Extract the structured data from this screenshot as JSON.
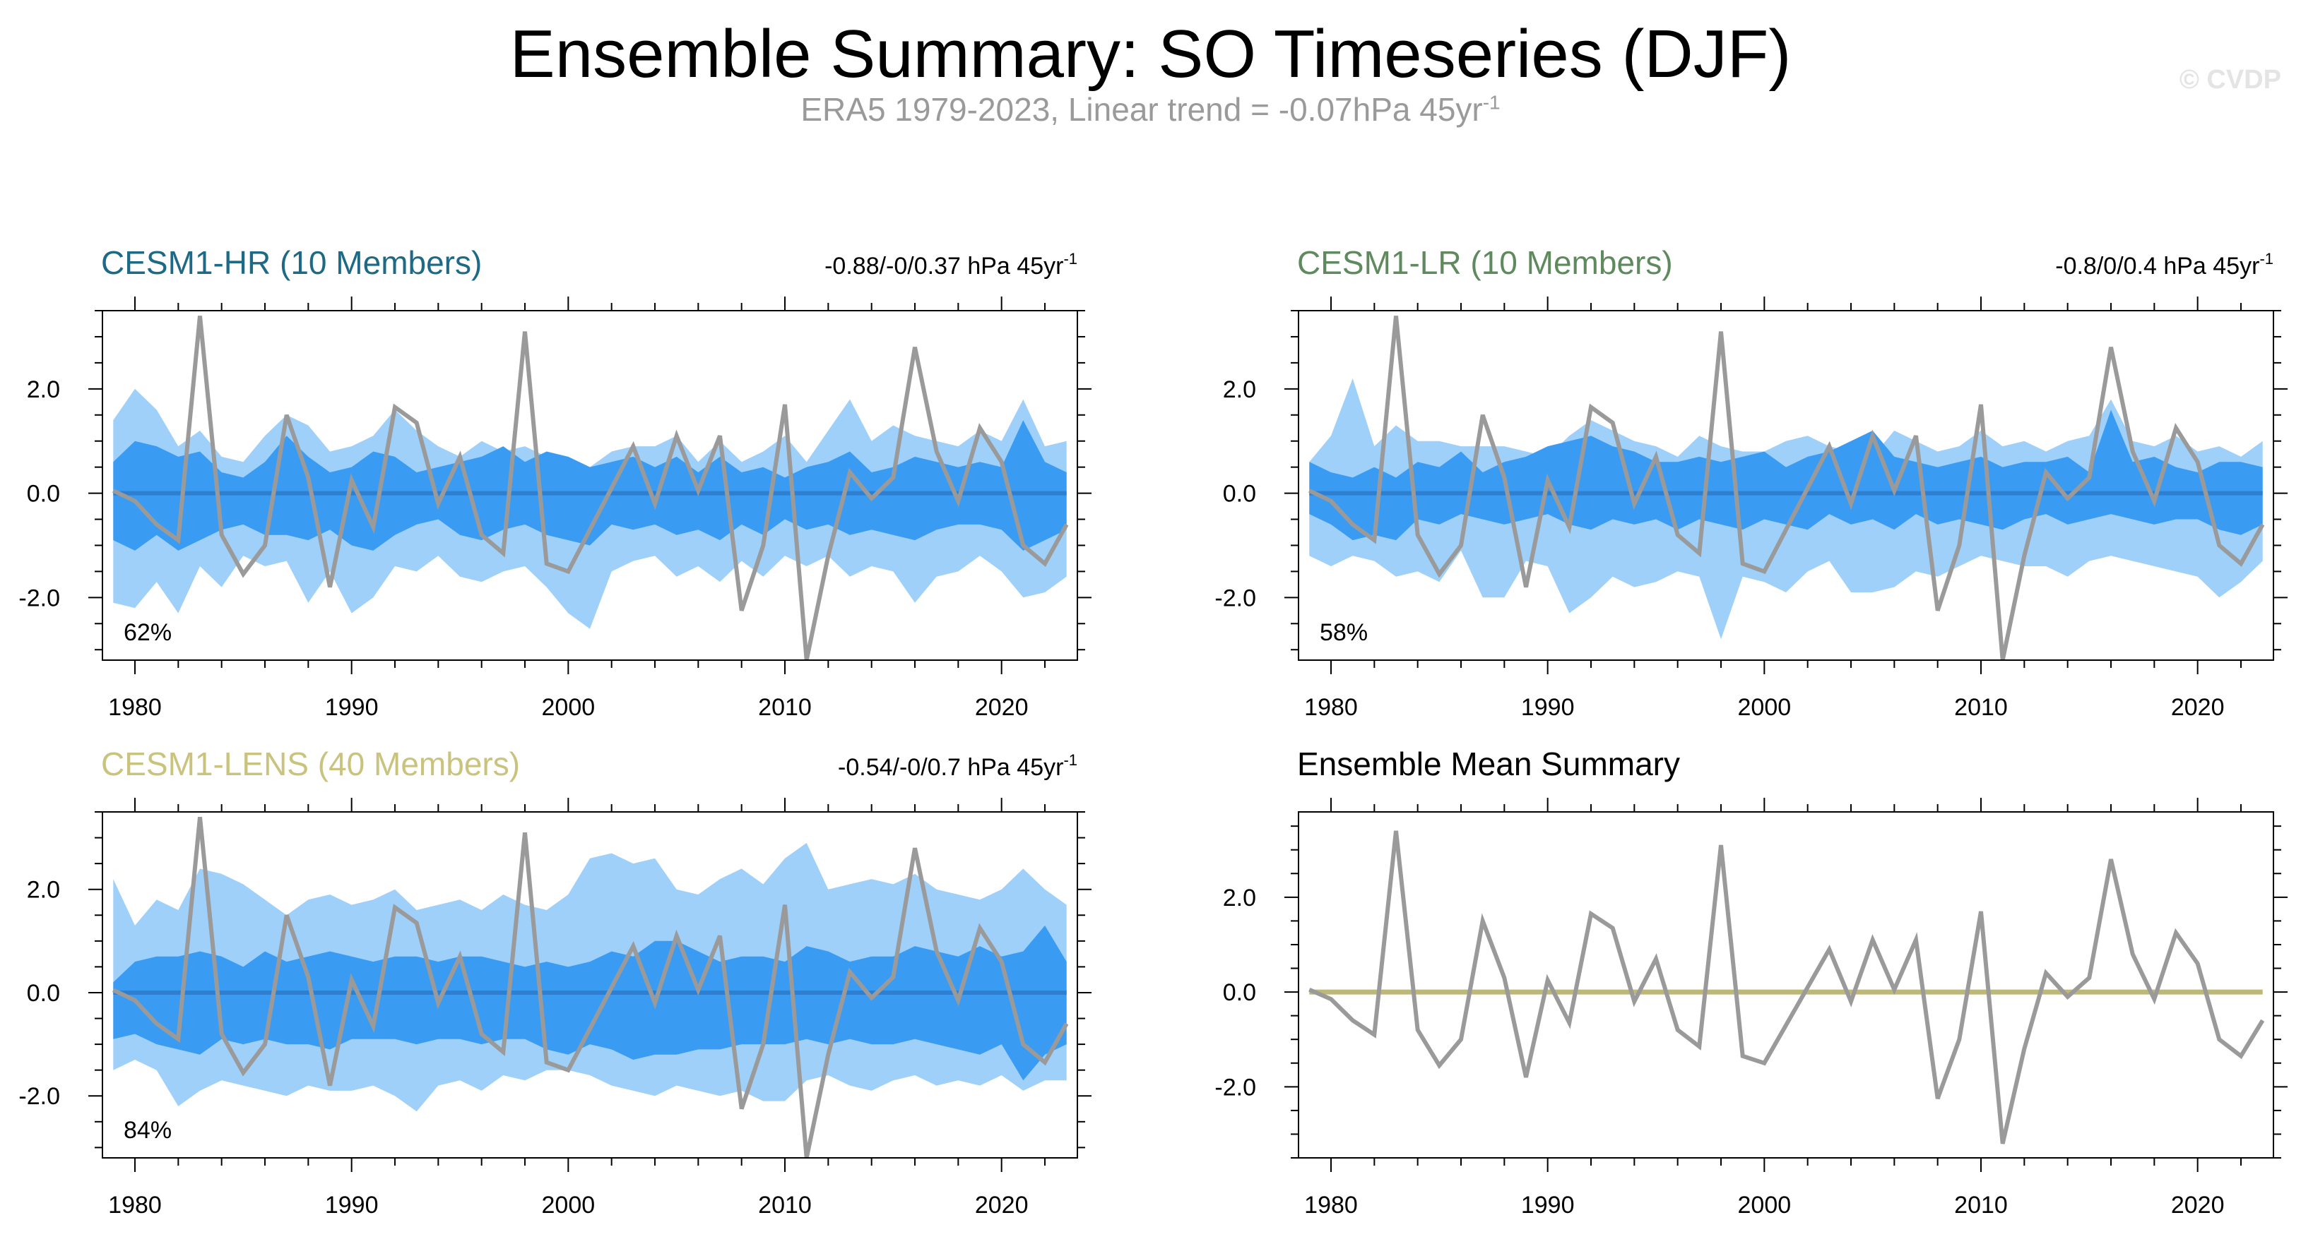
{
  "title": "Ensemble Summary: SO Timeseries (DJF)",
  "subtitle": {
    "text": "ERA5 1979-2023, Linear trend = -0.07hPa 45yr",
    "superscript": "-1"
  },
  "watermark": "© CVDP",
  "colors": {
    "outer_band": "#9fd0fa",
    "inner_band": "#3a9bf3",
    "ensemble_mean": "#2f7fd0",
    "observed": "#9a9a9a",
    "summary_mean": "#bcb878",
    "cesm1_hr": "#1e6a86",
    "cesm1_lr": "#5e8a5e",
    "cesm1_lens": "#c9c37e"
  },
  "chart_data": [
    {
      "type": "area",
      "title": "CESM1-HR (10 Members)",
      "title_color": "#1e6a86",
      "trend_text": "-0.88/-0/0.37 hPa 45yr",
      "trend_superscript": "-1",
      "percent_label": "62%",
      "x": [
        1979,
        1980,
        1981,
        1982,
        1983,
        1984,
        1985,
        1986,
        1987,
        1988,
        1989,
        1990,
        1991,
        1992,
        1993,
        1994,
        1995,
        1996,
        1997,
        1998,
        1999,
        2000,
        2001,
        2002,
        2003,
        2004,
        2005,
        2006,
        2007,
        2008,
        2009,
        2010,
        2011,
        2012,
        2013,
        2014,
        2015,
        2016,
        2017,
        2018,
        2019,
        2020,
        2021,
        2022,
        2023
      ],
      "xlim": [
        1978.5,
        2023.5
      ],
      "ylim": [
        -3.2,
        3.5
      ],
      "xticks": [
        "1980",
        "1990",
        "2000",
        "2010",
        "2020"
      ],
      "yticks": [
        "2.0",
        "0.0",
        "-2.0"
      ],
      "ytick_values": [
        2.0,
        0.0,
        -2.0
      ],
      "outer_upper": [
        1.4,
        2.0,
        1.6,
        0.9,
        1.2,
        0.7,
        0.6,
        1.1,
        1.5,
        1.3,
        0.8,
        0.9,
        1.1,
        1.6,
        1.2,
        0.9,
        0.7,
        1.0,
        0.8,
        0.9,
        0.7,
        0.7,
        0.5,
        0.8,
        0.9,
        0.9,
        1.1,
        0.6,
        1.0,
        0.6,
        0.8,
        1.1,
        0.6,
        1.2,
        1.8,
        1.0,
        1.3,
        1.1,
        1.0,
        0.9,
        1.2,
        1.0,
        1.8,
        0.9,
        1.0
      ],
      "outer_lower": [
        -2.1,
        -2.2,
        -1.7,
        -2.3,
        -1.4,
        -1.8,
        -1.2,
        -1.4,
        -1.3,
        -2.1,
        -1.5,
        -2.3,
        -2.0,
        -1.4,
        -1.5,
        -1.2,
        -1.6,
        -1.7,
        -1.5,
        -1.4,
        -1.8,
        -2.3,
        -2.6,
        -1.5,
        -1.3,
        -1.2,
        -1.6,
        -1.4,
        -1.7,
        -1.3,
        -1.6,
        -1.2,
        -1.4,
        -1.2,
        -1.6,
        -1.4,
        -1.5,
        -2.1,
        -1.6,
        -1.5,
        -1.2,
        -1.5,
        -2.0,
        -1.9,
        -1.6
      ],
      "inner_upper": [
        0.6,
        1.0,
        0.9,
        0.7,
        0.8,
        0.4,
        0.3,
        0.6,
        1.1,
        0.7,
        0.4,
        0.5,
        0.8,
        0.7,
        0.4,
        0.5,
        0.6,
        0.7,
        0.9,
        0.6,
        0.8,
        0.7,
        0.5,
        0.6,
        0.7,
        0.5,
        0.7,
        0.4,
        0.7,
        0.4,
        0.5,
        0.3,
        0.5,
        0.6,
        0.8,
        0.4,
        0.5,
        0.7,
        0.6,
        0.5,
        0.6,
        0.5,
        1.4,
        0.6,
        0.4
      ],
      "inner_lower": [
        -0.9,
        -1.1,
        -0.8,
        -1.1,
        -0.9,
        -0.7,
        -0.6,
        -0.8,
        -0.8,
        -0.9,
        -0.7,
        -1.0,
        -1.1,
        -0.8,
        -0.6,
        -0.5,
        -0.8,
        -0.9,
        -0.7,
        -0.6,
        -0.8,
        -0.9,
        -1.0,
        -0.6,
        -0.7,
        -0.6,
        -0.8,
        -0.7,
        -0.9,
        -0.6,
        -0.8,
        -0.5,
        -0.7,
        -0.6,
        -0.8,
        -0.7,
        -0.8,
        -0.9,
        -0.7,
        -0.6,
        -0.6,
        -0.7,
        -1.1,
        -0.9,
        -0.7
      ],
      "ensemble_mean": [
        0.0,
        0.0,
        0.0,
        0.0,
        0.0,
        0.0,
        0.0,
        0.0,
        0.0,
        0.0,
        0.0,
        0.0,
        0.0,
        0.0,
        0.0,
        0.0,
        0.0,
        0.0,
        0.0,
        0.0,
        0.0,
        0.0,
        0.0,
        0.0,
        0.0,
        0.0,
        0.0,
        0.0,
        0.0,
        0.0,
        0.0,
        0.0,
        0.0,
        0.0,
        0.0,
        0.0,
        0.0,
        0.0,
        0.0,
        0.0,
        0.0,
        0.0,
        0.0,
        0.0,
        0.0
      ],
      "observed": [
        0.05,
        -0.15,
        -0.6,
        -0.9,
        3.4,
        -0.8,
        -1.55,
        -1.0,
        1.5,
        0.3,
        -1.8,
        0.25,
        -0.65,
        1.65,
        1.35,
        -0.2,
        0.7,
        -0.8,
        -1.15,
        3.1,
        -1.35,
        -1.5,
        -0.7,
        0.1,
        0.9,
        -0.2,
        1.1,
        0.05,
        1.1,
        -2.25,
        -1.0,
        1.7,
        -3.2,
        -1.2,
        0.4,
        -0.1,
        0.3,
        2.8,
        0.8,
        -0.15,
        1.25,
        0.6,
        -1.0,
        -1.35,
        -0.6
      ]
    },
    {
      "type": "area",
      "title": "CESM1-LR (10 Members)",
      "title_color": "#5e8a5e",
      "trend_text": "-0.8/0/0.4 hPa 45yr",
      "trend_superscript": "-1",
      "percent_label": "58%",
      "x": [
        1979,
        1980,
        1981,
        1982,
        1983,
        1984,
        1985,
        1986,
        1987,
        1988,
        1989,
        1990,
        1991,
        1992,
        1993,
        1994,
        1995,
        1996,
        1997,
        1998,
        1999,
        2000,
        2001,
        2002,
        2003,
        2004,
        2005,
        2006,
        2007,
        2008,
        2009,
        2010,
        2011,
        2012,
        2013,
        2014,
        2015,
        2016,
        2017,
        2018,
        2019,
        2020,
        2021,
        2022,
        2023
      ],
      "xlim": [
        1978.5,
        2023.5
      ],
      "ylim": [
        -3.2,
        3.5
      ],
      "xticks": [
        "1980",
        "1990",
        "2000",
        "2010",
        "2020"
      ],
      "yticks": [
        "2.0",
        "0.0",
        "-2.0"
      ],
      "ytick_values": [
        2.0,
        0.0,
        -2.0
      ],
      "outer_upper": [
        0.6,
        1.1,
        2.2,
        0.9,
        1.3,
        1.0,
        1.0,
        0.9,
        0.9,
        0.9,
        0.8,
        0.7,
        1.1,
        1.4,
        1.2,
        1.0,
        0.9,
        0.7,
        1.1,
        0.9,
        0.8,
        0.8,
        1.0,
        1.1,
        0.9,
        0.8,
        0.7,
        1.2,
        1.0,
        0.8,
        0.9,
        1.2,
        0.9,
        1.0,
        0.8,
        1.0,
        1.1,
        1.8,
        1.0,
        0.9,
        1.1,
        0.8,
        0.9,
        0.7,
        1.0
      ],
      "outer_lower": [
        -1.2,
        -1.4,
        -1.2,
        -1.3,
        -1.6,
        -1.5,
        -1.7,
        -1.1,
        -2.0,
        -2.0,
        -1.3,
        -1.4,
        -2.3,
        -2.0,
        -1.6,
        -1.8,
        -1.7,
        -1.5,
        -1.6,
        -2.8,
        -1.6,
        -1.7,
        -1.9,
        -1.5,
        -1.3,
        -1.9,
        -1.9,
        -1.8,
        -1.5,
        -1.6,
        -1.4,
        -1.2,
        -1.3,
        -1.4,
        -1.4,
        -1.6,
        -1.3,
        -1.2,
        -1.3,
        -1.4,
        -1.5,
        -1.6,
        -2.0,
        -1.7,
        -1.3
      ],
      "inner_upper": [
        0.6,
        0.4,
        0.3,
        0.5,
        0.3,
        0.6,
        0.5,
        0.8,
        0.4,
        0.6,
        0.7,
        0.9,
        1.0,
        1.1,
        0.9,
        0.8,
        0.6,
        0.6,
        0.7,
        0.6,
        0.7,
        0.8,
        0.5,
        0.7,
        0.8,
        1.0,
        1.2,
        0.7,
        0.6,
        0.5,
        0.6,
        0.7,
        0.5,
        0.6,
        0.6,
        0.7,
        0.4,
        1.6,
        0.6,
        0.7,
        0.5,
        0.4,
        0.6,
        0.6,
        0.5
      ],
      "inner_lower": [
        -0.4,
        -0.6,
        -0.9,
        -0.8,
        -0.9,
        -0.5,
        -0.6,
        -0.4,
        -0.5,
        -0.6,
        -0.5,
        -0.4,
        -0.6,
        -0.7,
        -0.5,
        -0.6,
        -0.5,
        -0.7,
        -0.5,
        -0.6,
        -0.7,
        -0.5,
        -0.6,
        -0.7,
        -0.4,
        -0.6,
        -0.5,
        -0.7,
        -0.4,
        -0.6,
        -0.5,
        -0.6,
        -0.7,
        -0.5,
        -0.4,
        -0.6,
        -0.5,
        -0.4,
        -0.5,
        -0.6,
        -0.5,
        -0.5,
        -0.7,
        -0.8,
        -0.6
      ],
      "ensemble_mean": [
        0.0,
        0.0,
        0.0,
        0.0,
        0.0,
        0.0,
        0.0,
        0.0,
        0.0,
        0.0,
        0.0,
        0.0,
        0.0,
        0.0,
        0.0,
        0.0,
        0.0,
        0.0,
        0.0,
        0.0,
        0.0,
        0.0,
        0.0,
        0.0,
        0.0,
        0.0,
        0.0,
        0.0,
        0.0,
        0.0,
        0.0,
        0.0,
        0.0,
        0.0,
        0.0,
        0.0,
        0.0,
        0.0,
        0.0,
        0.0,
        0.0,
        0.0,
        0.0,
        0.0,
        0.0
      ],
      "observed": [
        0.05,
        -0.15,
        -0.6,
        -0.9,
        3.4,
        -0.8,
        -1.55,
        -1.0,
        1.5,
        0.3,
        -1.8,
        0.25,
        -0.65,
        1.65,
        1.35,
        -0.2,
        0.7,
        -0.8,
        -1.15,
        3.1,
        -1.35,
        -1.5,
        -0.7,
        0.1,
        0.9,
        -0.2,
        1.1,
        0.05,
        1.1,
        -2.25,
        -1.0,
        1.7,
        -3.2,
        -1.2,
        0.4,
        -0.1,
        0.3,
        2.8,
        0.8,
        -0.15,
        1.25,
        0.6,
        -1.0,
        -1.35,
        -0.6
      ]
    },
    {
      "type": "area",
      "title": "CESM1-LENS (40 Members)",
      "title_color": "#c9c37e",
      "trend_text": "-0.54/-0/0.7 hPa 45yr",
      "trend_superscript": "-1",
      "percent_label": "84%",
      "x": [
        1979,
        1980,
        1981,
        1982,
        1983,
        1984,
        1985,
        1986,
        1987,
        1988,
        1989,
        1990,
        1991,
        1992,
        1993,
        1994,
        1995,
        1996,
        1997,
        1998,
        1999,
        2000,
        2001,
        2002,
        2003,
        2004,
        2005,
        2006,
        2007,
        2008,
        2009,
        2010,
        2011,
        2012,
        2013,
        2014,
        2015,
        2016,
        2017,
        2018,
        2019,
        2020,
        2021,
        2022,
        2023
      ],
      "xlim": [
        1978.5,
        2023.5
      ],
      "ylim": [
        -3.2,
        3.5
      ],
      "xticks": [
        "1980",
        "1990",
        "2000",
        "2010",
        "2020"
      ],
      "yticks": [
        "2.0",
        "0.0",
        "-2.0"
      ],
      "ytick_values": [
        2.0,
        0.0,
        -2.0
      ],
      "outer_upper": [
        2.2,
        1.3,
        1.8,
        1.6,
        2.4,
        2.3,
        2.1,
        1.8,
        1.5,
        1.8,
        1.9,
        1.7,
        1.8,
        2.0,
        1.6,
        1.7,
        1.8,
        1.6,
        1.9,
        1.7,
        1.6,
        1.9,
        2.6,
        2.7,
        2.5,
        2.6,
        2.0,
        1.9,
        2.2,
        2.4,
        2.1,
        2.6,
        2.9,
        2.0,
        2.1,
        2.2,
        2.1,
        2.3,
        2.0,
        1.9,
        1.8,
        2.0,
        2.4,
        2.0,
        1.7
      ],
      "outer_lower": [
        -1.5,
        -1.3,
        -1.5,
        -2.2,
        -1.9,
        -1.7,
        -1.8,
        -1.9,
        -2.0,
        -1.8,
        -1.9,
        -1.9,
        -1.8,
        -2.0,
        -2.3,
        -1.8,
        -1.7,
        -1.9,
        -1.6,
        -1.7,
        -1.5,
        -1.5,
        -1.6,
        -1.8,
        -1.9,
        -2.0,
        -1.8,
        -1.9,
        -2.0,
        -1.9,
        -2.1,
        -2.1,
        -1.7,
        -1.6,
        -1.8,
        -1.9,
        -1.7,
        -1.6,
        -1.8,
        -1.7,
        -1.8,
        -1.6,
        -1.9,
        -1.7,
        -1.7
      ],
      "inner_upper": [
        0.2,
        0.6,
        0.7,
        0.7,
        0.8,
        0.7,
        0.5,
        0.8,
        0.6,
        0.7,
        0.8,
        0.7,
        0.6,
        0.7,
        0.7,
        0.6,
        0.7,
        0.7,
        0.6,
        0.5,
        0.6,
        0.5,
        0.6,
        0.8,
        0.7,
        1.0,
        1.0,
        0.8,
        0.6,
        0.7,
        0.7,
        0.6,
        0.9,
        0.8,
        0.6,
        0.7,
        0.7,
        0.9,
        0.8,
        0.7,
        0.9,
        0.7,
        0.8,
        1.3,
        0.6
      ],
      "inner_lower": [
        -0.9,
        -0.8,
        -1.0,
        -1.1,
        -1.2,
        -0.9,
        -1.0,
        -0.9,
        -1.0,
        -1.0,
        -1.1,
        -0.9,
        -0.9,
        -0.9,
        -1.0,
        -0.9,
        -0.9,
        -1.0,
        -0.9,
        -0.9,
        -1.1,
        -1.2,
        -1.0,
        -1.1,
        -1.3,
        -1.2,
        -1.2,
        -1.1,
        -1.1,
        -1.0,
        -1.0,
        -1.0,
        -0.9,
        -1.0,
        -0.9,
        -1.0,
        -1.0,
        -0.9,
        -1.0,
        -1.1,
        -1.2,
        -1.0,
        -1.7,
        -1.2,
        -1.0
      ],
      "ensemble_mean": [
        0.0,
        0.0,
        0.0,
        0.0,
        0.0,
        0.0,
        0.0,
        0.0,
        0.0,
        0.0,
        0.0,
        0.0,
        0.0,
        0.0,
        0.0,
        0.0,
        0.0,
        0.0,
        0.0,
        0.0,
        0.0,
        0.0,
        0.0,
        0.0,
        0.0,
        0.0,
        0.0,
        0.0,
        0.0,
        0.0,
        0.0,
        0.0,
        0.0,
        0.0,
        0.0,
        0.0,
        0.0,
        0.0,
        0.0,
        0.0,
        0.0,
        0.0,
        0.0,
        0.0,
        0.0
      ],
      "observed": [
        0.05,
        -0.15,
        -0.6,
        -0.9,
        3.4,
        -0.8,
        -1.55,
        -1.0,
        1.5,
        0.3,
        -1.8,
        0.25,
        -0.65,
        1.65,
        1.35,
        -0.2,
        0.7,
        -0.8,
        -1.15,
        3.1,
        -1.35,
        -1.5,
        -0.7,
        0.1,
        0.9,
        -0.2,
        1.1,
        0.05,
        1.1,
        -2.25,
        -1.0,
        1.7,
        -3.2,
        -1.2,
        0.4,
        -0.1,
        0.3,
        2.8,
        0.8,
        -0.15,
        1.25,
        0.6,
        -1.0,
        -1.35,
        -0.6
      ]
    },
    {
      "type": "line",
      "title": "Ensemble Mean Summary",
      "title_color": "#000000",
      "x": [
        1979,
        1980,
        1981,
        1982,
        1983,
        1984,
        1985,
        1986,
        1987,
        1988,
        1989,
        1990,
        1991,
        1992,
        1993,
        1994,
        1995,
        1996,
        1997,
        1998,
        1999,
        2000,
        2001,
        2002,
        2003,
        2004,
        2005,
        2006,
        2007,
        2008,
        2009,
        2010,
        2011,
        2012,
        2013,
        2014,
        2015,
        2016,
        2017,
        2018,
        2019,
        2020,
        2021,
        2022,
        2023
      ],
      "xlim": [
        1978.5,
        2023.5
      ],
      "ylim": [
        -3.5,
        3.8
      ],
      "xticks": [
        "1980",
        "1990",
        "2000",
        "2010",
        "2020"
      ],
      "yticks": [
        "2.0",
        "0.0",
        "-2.0"
      ],
      "ytick_values": [
        2.0,
        0.0,
        -2.0
      ],
      "ensemble_mean": [
        0.0,
        0.0,
        0.0,
        0.0,
        0.0,
        0.0,
        0.0,
        0.0,
        0.0,
        0.0,
        0.0,
        0.0,
        0.0,
        0.0,
        0.0,
        0.0,
        0.0,
        0.0,
        0.0,
        0.0,
        0.0,
        0.0,
        0.0,
        0.0,
        0.0,
        0.0,
        0.0,
        0.0,
        0.0,
        0.0,
        0.0,
        0.0,
        0.0,
        0.0,
        0.0,
        0.0,
        0.0,
        0.0,
        0.0,
        0.0,
        0.0,
        0.0,
        0.0,
        0.0,
        0.0
      ],
      "observed": [
        0.05,
        -0.15,
        -0.6,
        -0.9,
        3.4,
        -0.8,
        -1.55,
        -1.0,
        1.5,
        0.3,
        -1.8,
        0.25,
        -0.65,
        1.65,
        1.35,
        -0.2,
        0.7,
        -0.8,
        -1.15,
        3.1,
        -1.35,
        -1.5,
        -0.7,
        0.1,
        0.9,
        -0.2,
        1.1,
        0.05,
        1.1,
        -2.25,
        -1.0,
        1.7,
        -3.2,
        -1.2,
        0.4,
        -0.1,
        0.3,
        2.8,
        0.8,
        -0.15,
        1.25,
        0.6,
        -1.0,
        -1.35,
        -0.6
      ]
    }
  ]
}
